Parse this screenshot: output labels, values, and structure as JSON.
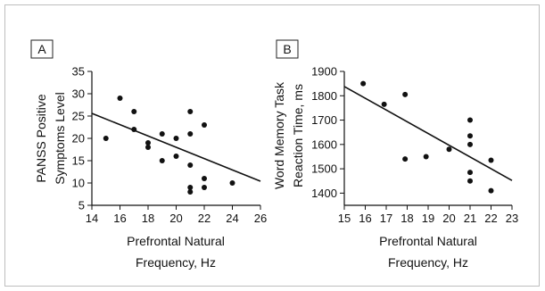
{
  "chart_data": [
    {
      "panel_label": "A",
      "type": "scatter",
      "xlabel": [
        "Prefrontal Natural",
        "Frequency, Hz"
      ],
      "ylabel": [
        "PANSS Positive",
        "Symptoms Level"
      ],
      "xlim": [
        14,
        26
      ],
      "ylim": [
        5,
        35
      ],
      "xticks": [
        14,
        16,
        18,
        20,
        22,
        24,
        26
      ],
      "yticks": [
        5,
        10,
        15,
        20,
        25,
        30,
        35
      ],
      "points": [
        [
          15,
          20
        ],
        [
          16,
          29
        ],
        [
          17,
          26
        ],
        [
          17,
          22
        ],
        [
          18,
          19
        ],
        [
          18,
          18
        ],
        [
          19,
          21
        ],
        [
          19,
          15
        ],
        [
          20,
          20
        ],
        [
          20,
          16
        ],
        [
          21,
          26
        ],
        [
          21,
          21
        ],
        [
          21,
          14
        ],
        [
          21,
          9
        ],
        [
          21,
          8
        ],
        [
          22,
          23
        ],
        [
          22,
          11
        ],
        [
          22,
          9
        ],
        [
          24,
          10
        ]
      ],
      "trendline": [
        [
          14,
          25.6
        ],
        [
          26,
          10.4
        ]
      ]
    },
    {
      "panel_label": "B",
      "type": "scatter",
      "xlabel": [
        "Prefrontal Natural",
        "Frequency, Hz"
      ],
      "ylabel": [
        "Word Memory Task",
        "Reaction Time, ms"
      ],
      "xlim": [
        15,
        23
      ],
      "ylim": [
        1350,
        1900
      ],
      "xticks": [
        15,
        16,
        17,
        18,
        19,
        20,
        21,
        22,
        23
      ],
      "yticks": [
        1400,
        1500,
        1600,
        1700,
        1800,
        1900
      ],
      "points": [
        [
          15.9,
          1850
        ],
        [
          16.9,
          1765
        ],
        [
          17.9,
          1805
        ],
        [
          17.9,
          1540
        ],
        [
          18.9,
          1550
        ],
        [
          20,
          1580
        ],
        [
          21,
          1700
        ],
        [
          21,
          1635
        ],
        [
          21,
          1600
        ],
        [
          21,
          1485
        ],
        [
          21,
          1450
        ],
        [
          22,
          1535
        ],
        [
          22,
          1410
        ]
      ],
      "trendline": [
        [
          15,
          1838
        ],
        [
          23,
          1452
        ]
      ]
    }
  ]
}
